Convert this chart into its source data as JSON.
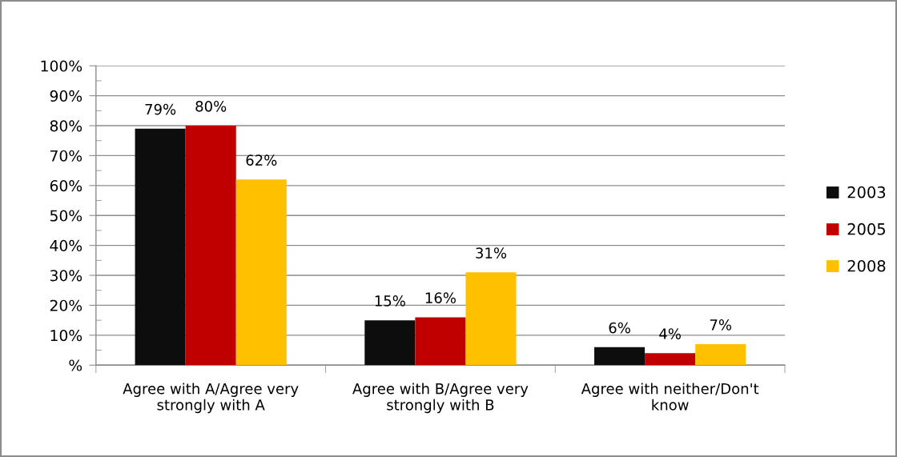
{
  "chart_data": {
    "type": "bar",
    "categories": [
      "Agree with A/Agree very\nstrongly with A",
      "Agree with B/Agree very\nstrongly with B",
      "Agree with neither/Don't\nknow"
    ],
    "series": [
      {
        "name": "2003",
        "color": "#0d0d0d",
        "values": [
          79,
          15,
          6
        ],
        "value_labels": [
          "79%",
          "15%",
          "6%"
        ]
      },
      {
        "name": "2005",
        "color": "#c00000",
        "values": [
          80,
          16,
          4
        ],
        "value_labels": [
          "80%",
          "16%",
          "4%"
        ]
      },
      {
        "name": "2008",
        "color": "#ffc000",
        "values": [
          62,
          31,
          7
        ],
        "value_labels": [
          "62%",
          "31%",
          "7%"
        ]
      }
    ],
    "ylim": [
      0,
      100
    ],
    "yticks": [
      {
        "value": 0,
        "label": "%"
      },
      {
        "value": 10,
        "label": "10%"
      },
      {
        "value": 20,
        "label": "20%"
      },
      {
        "value": 30,
        "label": "30%"
      },
      {
        "value": 40,
        "label": "40%"
      },
      {
        "value": 50,
        "label": "50%"
      },
      {
        "value": 60,
        "label": "60%"
      },
      {
        "value": 70,
        "label": "70%"
      },
      {
        "value": 80,
        "label": "80%"
      },
      {
        "value": 90,
        "label": "90%"
      },
      {
        "value": 100,
        "label": "100%"
      }
    ],
    "grid": "y",
    "legend": "right"
  }
}
